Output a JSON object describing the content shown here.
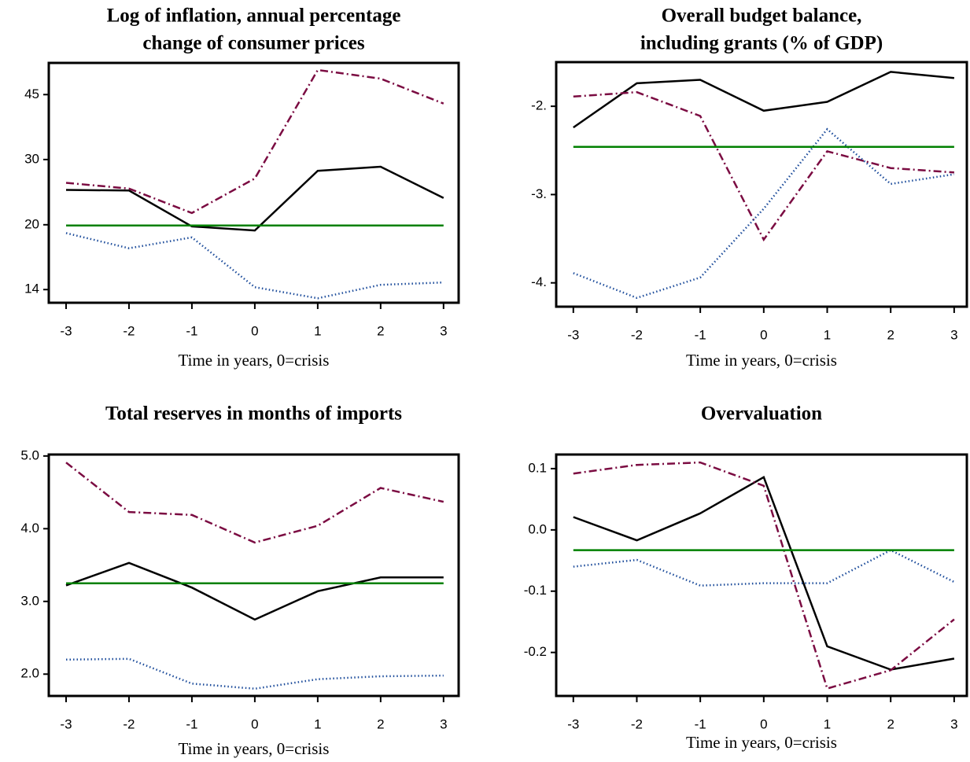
{
  "chart_data": [
    {
      "type": "line",
      "title": [
        "Log of inflation, annual percentage",
        "change of consumer prices"
      ],
      "xlabel": "Time in years, 0=crisis",
      "x": [
        -3,
        -2,
        -1,
        0,
        1,
        2,
        3
      ],
      "xlim": [
        -3.275,
        3.24
      ],
      "xticks": [
        -3,
        -2,
        -1,
        0,
        1,
        2,
        3
      ],
      "log_scale": true,
      "ylim": [
        12.45,
        54.3
      ],
      "yticks": [
        {
          "value": 13.5,
          "label": "14"
        },
        {
          "value": 20.1,
          "label": "20"
        },
        {
          "value": 30.0,
          "label": "30"
        },
        {
          "value": 44.7,
          "label": "45"
        }
      ],
      "series": [
        {
          "color": "#000000",
          "style": "solid",
          "values": [
            24.9,
            24.8,
            19.9,
            19.4,
            28.0,
            28.7,
            23.7
          ]
        },
        {
          "color": "#7b0c42",
          "style": "dashdot",
          "values": [
            26.0,
            25.1,
            21.6,
            26.7,
            52.0,
            49.3,
            42.3
          ]
        },
        {
          "color": "#1f4e9c",
          "style": "dotted",
          "values": [
            19.1,
            17.4,
            18.6,
            13.7,
            12.8,
            13.9,
            14.1
          ]
        },
        {
          "color": "#008000",
          "style": "solid",
          "values": [
            20.0,
            20.0,
            20.0,
            20.0,
            20.0,
            20.0,
            20.0
          ]
        }
      ]
    },
    {
      "type": "line",
      "title": [
        "Overall budget balance,",
        "including grants (% of GDP)"
      ],
      "xlabel": "Time in years, 0=crisis",
      "x": [
        -3,
        -2,
        -1,
        0,
        1,
        2,
        3
      ],
      "xlim": [
        -3.27,
        3.2
      ],
      "xticks": [
        -3,
        -2,
        -1,
        0,
        1,
        2,
        3
      ],
      "log_scale": false,
      "ylim": [
        -4.27,
        -1.5
      ],
      "yticks": [
        {
          "value": -4,
          "label": "-4."
        },
        {
          "value": -3,
          "label": "-3."
        },
        {
          "value": -2,
          "label": "-2."
        }
      ],
      "series": [
        {
          "color": "#000000",
          "style": "solid",
          "values": [
            -2.24,
            -1.74,
            -1.7,
            -2.05,
            -1.95,
            -1.61,
            -1.68
          ]
        },
        {
          "color": "#7b0c42",
          "style": "dashdot",
          "values": [
            -1.89,
            -1.84,
            -2.11,
            -3.51,
            -2.51,
            -2.7,
            -2.75
          ]
        },
        {
          "color": "#1f4e9c",
          "style": "dotted",
          "values": [
            -3.89,
            -4.17,
            -3.94,
            -3.16,
            -2.26,
            -2.88,
            -2.77
          ]
        },
        {
          "color": "#008000",
          "style": "solid",
          "values": [
            -2.46,
            -2.46,
            -2.46,
            -2.46,
            -2.46,
            -2.46,
            -2.46
          ]
        }
      ]
    },
    {
      "type": "line",
      "title": [
        "Total reserves in months of imports"
      ],
      "xlabel": "Time in years, 0=crisis",
      "x": [
        -3,
        -2,
        -1,
        0,
        1,
        2,
        3
      ],
      "xlim": [
        -3.275,
        3.24
      ],
      "xticks": [
        -3,
        -2,
        -1,
        0,
        1,
        2,
        3
      ],
      "log_scale": false,
      "ylim": [
        1.7,
        5.02
      ],
      "yticks": [
        {
          "value": 2,
          "label": "2.0"
        },
        {
          "value": 3,
          "label": "3.0"
        },
        {
          "value": 4,
          "label": "4.0"
        },
        {
          "value": 5,
          "label": "5.0"
        }
      ],
      "series": [
        {
          "color": "#000000",
          "style": "solid",
          "values": [
            3.22,
            3.53,
            3.19,
            2.75,
            3.14,
            3.33,
            3.33
          ]
        },
        {
          "color": "#7b0c42",
          "style": "dashdot",
          "values": [
            4.91,
            4.23,
            4.19,
            3.81,
            4.04,
            4.56,
            4.37
          ]
        },
        {
          "color": "#1f4e9c",
          "style": "dotted",
          "values": [
            2.2,
            2.21,
            1.87,
            1.8,
            1.93,
            1.97,
            1.98
          ]
        },
        {
          "color": "#008000",
          "style": "solid",
          "values": [
            3.25,
            3.25,
            3.25,
            3.25,
            3.25,
            3.25,
            3.25
          ]
        }
      ]
    },
    {
      "type": "line",
      "title": [
        "Overvaluation"
      ],
      "xlabel": "Time in years, 0=crisis",
      "x": [
        -3,
        -2,
        -1,
        0,
        1,
        2,
        3
      ],
      "xlim": [
        -3.27,
        3.2
      ],
      "xticks": [
        -3,
        -2,
        -1,
        0,
        1,
        2,
        3
      ],
      "log_scale": false,
      "ylim": [
        -0.271,
        0.123
      ],
      "yticks": [
        -0.2,
        -0.1,
        {
          "value": 0,
          "label": "0.0"
        },
        0.1
      ],
      "series": [
        {
          "color": "#000000",
          "style": "solid",
          "values": [
            0.021,
            -0.017,
            0.027,
            0.086,
            -0.19,
            -0.228,
            -0.21
          ]
        },
        {
          "color": "#7b0c42",
          "style": "dashdot",
          "values": [
            0.092,
            0.106,
            0.11,
            0.072,
            -0.259,
            -0.229,
            -0.146
          ]
        },
        {
          "color": "#1f4e9c",
          "style": "dotted",
          "values": [
            -0.06,
            -0.049,
            -0.091,
            -0.087,
            -0.087,
            -0.033,
            -0.085
          ]
        },
        {
          "color": "#008000",
          "style": "solid",
          "values": [
            -0.033,
            -0.033,
            -0.033,
            -0.033,
            -0.033,
            -0.033,
            -0.033
          ]
        }
      ]
    }
  ]
}
